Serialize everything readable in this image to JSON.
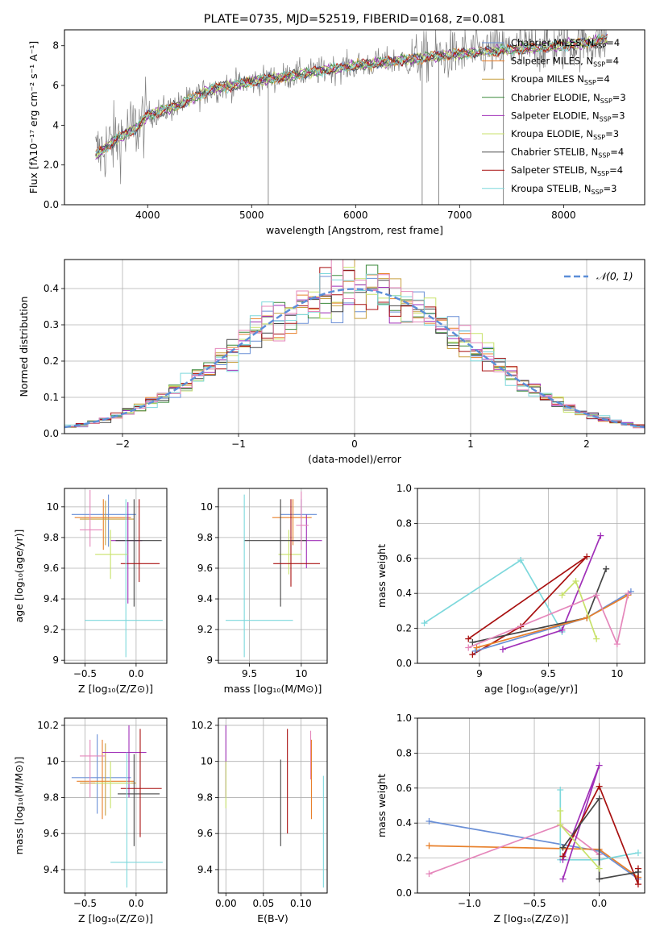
{
  "colors": {
    "chabrier_miles": "#6a8fd6",
    "salpeter_miles": "#e8802b",
    "kroupa_miles": "#c8a040",
    "chabrier_elodie": "#3b8a3b",
    "salpeter_elodie": "#a02fb8",
    "kroupa_elodie": "#c8e26a",
    "chabrier_stelib": "#454545",
    "salpeter_stelib": "#a81010",
    "kroupa_stelib": "#7dd8dc",
    "pink": "#e587bb",
    "normal_curve": "#5b8ed8",
    "grid": "#b0b0b0",
    "data_grey": "#808080"
  },
  "chart_data": [
    {
      "id": "spectrum",
      "type": "line",
      "title": "PLATE=0735, MJD=52519, FIBERID=0168, z=0.081",
      "xlabel": "wavelength [Angstrom, rest frame]",
      "ylabel": "Flux [fλ10⁻¹⁷ erg cm⁻² s⁻¹ A⁻¹]",
      "xlim": [
        3200,
        8780
      ],
      "ylim": [
        0,
        8.8
      ],
      "xticks": [
        4000,
        5000,
        6000,
        7000,
        8000
      ],
      "yticks": [
        0,
        2,
        4,
        6,
        8
      ],
      "legend_position": "top-right",
      "continuum_knots": [
        [
          3500,
          2.5
        ],
        [
          3700,
          3.3
        ],
        [
          3900,
          3.9
        ],
        [
          4000,
          4.5
        ],
        [
          4300,
          5.0
        ],
        [
          4600,
          5.8
        ],
        [
          5000,
          6.2
        ],
        [
          5500,
          6.6
        ],
        [
          6000,
          7.0
        ],
        [
          6500,
          7.3
        ],
        [
          7000,
          7.6
        ],
        [
          7500,
          7.8
        ],
        [
          8000,
          8.0
        ],
        [
          8400,
          8.3
        ]
      ],
      "spikes": [
        {
          "x": 5160,
          "y": 0.0
        },
        {
          "x": 6640,
          "y": 0.0
        },
        {
          "x": 6800,
          "y": 0.0
        },
        {
          "x": 7420,
          "y": 0.0
        }
      ],
      "series": [
        {
          "name": "Chabrier MILES, N",
          "sub": "SSP",
          "tail": "=4",
          "color_key": "chabrier_miles"
        },
        {
          "name": "Salpeter MILES, N",
          "sub": "SSP",
          "tail": "=4",
          "color_key": "salpeter_miles"
        },
        {
          "name": "Kroupa MILES N",
          "sub": "SSP",
          "tail": "=4",
          "color_key": "kroupa_miles"
        },
        {
          "name": "Chabrier ELODIE, N",
          "sub": "SSP",
          "tail": "=3",
          "color_key": "chabrier_elodie"
        },
        {
          "name": "Salpeter ELODIE, N",
          "sub": "SSP",
          "tail": "=3",
          "color_key": "salpeter_elodie"
        },
        {
          "name": "Kroupa ELODIE, N",
          "sub": "SSP",
          "tail": "=3",
          "color_key": "kroupa_elodie"
        },
        {
          "name": "Chabrier STELIB, N",
          "sub": "SSP",
          "tail": "=4",
          "color_key": "chabrier_stelib"
        },
        {
          "name": "Salpeter STELIB, N",
          "sub": "SSP",
          "tail": "=4",
          "color_key": "salpeter_stelib"
        },
        {
          "name": "Kroupa STELIB, N",
          "sub": "SSP",
          "tail": "=3",
          "color_key": "kroupa_stelib"
        }
      ]
    },
    {
      "id": "residuals",
      "type": "line",
      "xlabel": "(data-model)/error",
      "ylabel": "Normed distribution",
      "xlim": [
        -2.5,
        2.5
      ],
      "ylim": [
        0,
        0.48
      ],
      "xticks": [
        -2,
        -1,
        0,
        1,
        2
      ],
      "xtick_labels": [
        "−2",
        "−1",
        "0",
        "1",
        "2"
      ],
      "yticks": [
        0.0,
        0.1,
        0.2,
        0.3,
        0.4
      ],
      "ytick_labels": [
        "0.0",
        "0.1",
        "0.2",
        "0.3",
        "0.4"
      ],
      "legend": "𝒩(0, 1)",
      "legend_position": "top-right",
      "bin_width": 0.1,
      "histogram_colors": [
        "chabrier_miles",
        "salpeter_miles",
        "kroupa_miles",
        "chabrier_elodie",
        "salpeter_elodie",
        "kroupa_elodie",
        "chabrier_stelib",
        "salpeter_stelib",
        "kroupa_stelib",
        "pink"
      ]
    },
    {
      "id": "age_vs_z",
      "type": "scatter",
      "xlabel": "Z [log₁₀(Z/Z⊙)]",
      "ylabel": "age  [log₁₀(age/yr)]",
      "xlim": [
        -0.7,
        0.3
      ],
      "ylim": [
        8.98,
        10.12
      ],
      "xticks": [
        -0.5,
        0.0
      ],
      "xtick_labels": [
        "−0.5",
        "0.0"
      ],
      "yticks": [
        9.0,
        9.2,
        9.4,
        9.6,
        9.8,
        10.0
      ],
      "points": [
        {
          "c": "chabrier_miles",
          "x": -0.27,
          "y": 9.95,
          "xl": -0.63,
          "xh": 0.0,
          "yl": 9.74,
          "yh": 10.08
        },
        {
          "c": "salpeter_miles",
          "x": -0.32,
          "y": 9.93,
          "xl": -0.6,
          "xh": -0.05,
          "yl": 9.72,
          "yh": 10.05
        },
        {
          "c": "kroupa_miles",
          "x": -0.3,
          "y": 9.92,
          "xl": -0.55,
          "xh": -0.02,
          "yl": 9.75,
          "yh": 10.04
        },
        {
          "c": "salpeter_elodie",
          "x": -0.08,
          "y": 9.78,
          "xl": -0.25,
          "xh": 0.06,
          "yl": 9.37,
          "yh": 10.03
        },
        {
          "c": "kroupa_elodie",
          "x": -0.25,
          "y": 9.69,
          "xl": -0.4,
          "xh": -0.08,
          "yl": 9.53,
          "yh": 9.85
        },
        {
          "c": "chabrier_stelib",
          "x": -0.02,
          "y": 9.78,
          "xl": -0.2,
          "xh": 0.25,
          "yl": 9.35,
          "yh": 10.05
        },
        {
          "c": "salpeter_stelib",
          "x": 0.03,
          "y": 9.63,
          "xl": -0.15,
          "xh": 0.23,
          "yl": 9.51,
          "yh": 10.05
        },
        {
          "c": "kroupa_stelib",
          "x": -0.1,
          "y": 9.26,
          "xl": -0.5,
          "xh": 0.26,
          "yl": 9.02,
          "yh": 10.05
        },
        {
          "c": "pink",
          "x": -0.45,
          "y": 9.85,
          "xl": -0.55,
          "xh": -0.33,
          "yl": 9.74,
          "yh": 10.11
        }
      ]
    },
    {
      "id": "age_vs_mass",
      "type": "scatter",
      "xlabel": "mass [log₁₀(M/M⊙)]",
      "xlim": [
        9.2,
        10.25
      ],
      "ylim": [
        8.98,
        10.12
      ],
      "xticks": [
        9.5,
        10.0
      ],
      "yticks": [
        9.0,
        9.2,
        9.4,
        9.6,
        9.8,
        10.0
      ],
      "points": [
        {
          "c": "chabrier_miles",
          "x": 10.0,
          "y": 9.95,
          "xl": 9.8,
          "xh": 10.15,
          "yl": 9.78,
          "yh": 10.05
        },
        {
          "c": "salpeter_miles",
          "x": 9.92,
          "y": 9.93,
          "xl": 9.72,
          "xh": 10.1,
          "yl": 9.75,
          "yh": 10.05
        },
        {
          "c": "salpeter_elodie",
          "x": 10.05,
          "y": 9.78,
          "xl": 9.9,
          "xh": 10.2,
          "yl": 9.6,
          "yh": 9.95
        },
        {
          "c": "kroupa_elodie",
          "x": 9.88,
          "y": 9.69,
          "xl": 9.78,
          "xh": 10.0,
          "yl": 9.56,
          "yh": 9.85
        },
        {
          "c": "chabrier_stelib",
          "x": 9.8,
          "y": 9.78,
          "xl": 9.45,
          "xh": 10.05,
          "yl": 9.35,
          "yh": 10.05
        },
        {
          "c": "salpeter_stelib",
          "x": 9.9,
          "y": 9.63,
          "xl": 9.73,
          "xh": 10.18,
          "yl": 9.48,
          "yh": 10.05
        },
        {
          "c": "kroupa_stelib",
          "x": 9.45,
          "y": 9.26,
          "xl": 9.27,
          "xh": 9.92,
          "yl": 9.02,
          "yh": 10.08
        },
        {
          "c": "pink",
          "x": 10.0,
          "y": 9.88,
          "xl": 9.95,
          "xh": 10.07,
          "yl": 9.72,
          "yh": 10.1
        }
      ]
    },
    {
      "id": "weight_vs_age",
      "type": "line",
      "xlabel": "age  [log₁₀(age/yr)]",
      "ylabel": "mass weight",
      "xlim": [
        8.55,
        10.2
      ],
      "ylim": [
        0,
        1
      ],
      "xticks": [
        9.0,
        9.5,
        10.0
      ],
      "yticks": [
        0.0,
        0.2,
        0.4,
        0.6,
        0.8,
        1.0
      ],
      "series": [
        {
          "c": "kroupa_stelib",
          "pts": [
            [
              8.6,
              0.23
            ],
            [
              9.3,
              0.59
            ],
            [
              9.6,
              0.18
            ]
          ]
        },
        {
          "c": "salpeter_elodie",
          "pts": [
            [
              9.17,
              0.08
            ],
            [
              9.6,
              0.19
            ],
            [
              9.88,
              0.73
            ]
          ]
        },
        {
          "c": "salpeter_stelib",
          "pts": [
            [
              8.95,
              0.05
            ],
            [
              9.3,
              0.21
            ],
            [
              9.78,
              0.61
            ],
            [
              8.92,
              0.14
            ]
          ]
        },
        {
          "c": "chabrier_stelib",
          "pts": [
            [
              8.95,
              0.12
            ],
            [
              9.78,
              0.26
            ],
            [
              9.92,
              0.54
            ]
          ]
        },
        {
          "c": "chabrier_miles",
          "pts": [
            [
              8.97,
              0.07
            ],
            [
              9.78,
              0.26
            ],
            [
              10.1,
              0.41
            ]
          ]
        },
        {
          "c": "salpeter_miles",
          "pts": [
            [
              8.98,
              0.09
            ],
            [
              9.78,
              0.26
            ],
            [
              10.08,
              0.39
            ]
          ]
        },
        {
          "c": "kroupa_elodie",
          "pts": [
            [
              9.6,
              0.39
            ],
            [
              9.7,
              0.47
            ],
            [
              9.85,
              0.14
            ]
          ]
        },
        {
          "c": "pink",
          "pts": [
            [
              8.92,
              0.09
            ],
            [
              9.85,
              0.39
            ],
            [
              10.0,
              0.11
            ],
            [
              10.08,
              0.4
            ]
          ]
        }
      ]
    },
    {
      "id": "mass_vs_z",
      "type": "scatter",
      "xlabel": "Z [log₁₀(Z/Z⊙)]",
      "ylabel": "mass [log₁₀(M/M⊙)]",
      "xlim": [
        -0.7,
        0.3
      ],
      "ylim": [
        9.27,
        10.24
      ],
      "xticks": [
        -0.5,
        0.0
      ],
      "xtick_labels": [
        "−0.5",
        "0.0"
      ],
      "yticks": [
        9.4,
        9.6,
        9.8,
        10.0,
        10.2
      ],
      "points": [
        {
          "c": "chabrier_miles",
          "x": -0.38,
          "y": 9.91,
          "xl": -0.63,
          "xh": -0.05,
          "yl": 9.71,
          "yh": 10.15
        },
        {
          "c": "salpeter_miles",
          "x": -0.33,
          "y": 9.89,
          "xl": -0.58,
          "xh": -0.02,
          "yl": 9.68,
          "yh": 10.12
        },
        {
          "c": "kroupa_miles",
          "x": -0.3,
          "y": 9.88,
          "xl": -0.55,
          "xh": 0.0,
          "yl": 9.7,
          "yh": 10.1
        },
        {
          "c": "salpeter_elodie",
          "x": -0.07,
          "y": 10.05,
          "xl": -0.33,
          "xh": 0.1,
          "yl": 9.8,
          "yh": 10.2
        },
        {
          "c": "kroupa_elodie",
          "x": -0.25,
          "y": 9.88,
          "xl": -0.4,
          "xh": -0.05,
          "yl": 9.74,
          "yh": 10.0
        },
        {
          "c": "chabrier_stelib",
          "x": -0.02,
          "y": 9.82,
          "xl": -0.18,
          "xh": 0.23,
          "yl": 9.53,
          "yh": 10.04
        },
        {
          "c": "salpeter_stelib",
          "x": 0.04,
          "y": 9.85,
          "xl": -0.15,
          "xh": 0.25,
          "yl": 9.58,
          "yh": 10.18
        },
        {
          "c": "kroupa_stelib",
          "x": -0.09,
          "y": 9.44,
          "xl": -0.25,
          "xh": 0.26,
          "yl": 9.3,
          "yh": 10.05
        },
        {
          "c": "pink",
          "x": -0.45,
          "y": 10.03,
          "xl": -0.55,
          "xh": -0.3,
          "yl": 9.8,
          "yh": 10.12
        }
      ]
    },
    {
      "id": "mass_vs_ebv",
      "type": "scatter",
      "xlabel": "E(B-V)",
      "xlim": [
        -0.01,
        0.135
      ],
      "ylim": [
        9.27,
        10.24
      ],
      "xticks": [
        0.0,
        0.05,
        0.1
      ],
      "xtick_labels": [
        "0.00",
        "0.05",
        "0.10"
      ],
      "yticks": [
        9.4,
        9.6,
        9.8,
        10.0,
        10.2
      ],
      "points": [
        {
          "c": "salpeter_elodie",
          "x": 0.0,
          "y": 10.05,
          "yl": 9.8,
          "yh": 10.2
        },
        {
          "c": "kroupa_elodie",
          "x": 0.0,
          "y": 9.88,
          "yl": 9.74,
          "yh": 10.0
        },
        {
          "c": "chabrier_stelib",
          "x": 0.073,
          "y": 9.82,
          "yl": 9.53,
          "yh": 10.01
        },
        {
          "c": "salpeter_stelib",
          "x": 0.082,
          "y": 9.85,
          "yl": 9.6,
          "yh": 10.18
        },
        {
          "c": "pink",
          "x": 0.113,
          "y": 10.05,
          "yl": 9.9,
          "yh": 10.17
        },
        {
          "c": "salpeter_miles",
          "x": 0.114,
          "y": 9.89,
          "yl": 9.68,
          "yh": 10.12
        },
        {
          "c": "kroupa_stelib",
          "x": 0.13,
          "y": 9.44,
          "yl": 9.3,
          "yh": 9.92
        }
      ]
    },
    {
      "id": "weight_vs_z",
      "type": "line",
      "xlabel": "Z [log₁₀(Z/Z⊙)]",
      "ylabel": "mass weight",
      "xlim": [
        -1.4,
        0.35
      ],
      "ylim": [
        0,
        1
      ],
      "xticks": [
        -1.0,
        -0.5,
        0.0
      ],
      "xtick_labels": [
        "−1.0",
        "−0.5",
        "0.0"
      ],
      "yticks": [
        0.0,
        0.2,
        0.4,
        0.6,
        0.8,
        1.0
      ],
      "series": [
        {
          "c": "chabrier_miles",
          "pts": [
            [
              -1.31,
              0.41
            ],
            [
              0.0,
              0.24
            ],
            [
              0.3,
              0.08
            ]
          ]
        },
        {
          "c": "salpeter_miles",
          "pts": [
            [
              -1.31,
              0.27
            ],
            [
              0.0,
              0.25
            ],
            [
              0.3,
              0.09
            ]
          ]
        },
        {
          "c": "pink",
          "pts": [
            [
              -1.31,
              0.11
            ],
            [
              -0.3,
              0.39
            ],
            [
              0.0,
              0.22
            ]
          ]
        },
        {
          "c": "kroupa_stelib",
          "pts": [
            [
              -0.3,
              0.59
            ],
            [
              -0.3,
              0.19
            ],
            [
              0.0,
              0.19
            ],
            [
              0.3,
              0.23
            ]
          ]
        },
        {
          "c": "salpeter_elodie",
          "pts": [
            [
              -0.28,
              0.08
            ],
            [
              0.0,
              0.73
            ],
            [
              -0.28,
              0.19
            ]
          ]
        },
        {
          "c": "salpeter_stelib",
          "pts": [
            [
              -0.28,
              0.21
            ],
            [
              0.0,
              0.61
            ],
            [
              0.3,
              0.05
            ],
            [
              0.3,
              0.14
            ]
          ]
        },
        {
          "c": "chabrier_stelib",
          "pts": [
            [
              -0.28,
              0.26
            ],
            [
              0.0,
              0.54
            ],
            [
              0.0,
              0.08
            ],
            [
              0.3,
              0.12
            ]
          ]
        },
        {
          "c": "kroupa_elodie",
          "pts": [
            [
              -0.3,
              0.47
            ],
            [
              -0.3,
              0.39
            ],
            [
              0.0,
              0.14
            ]
          ]
        }
      ]
    }
  ]
}
